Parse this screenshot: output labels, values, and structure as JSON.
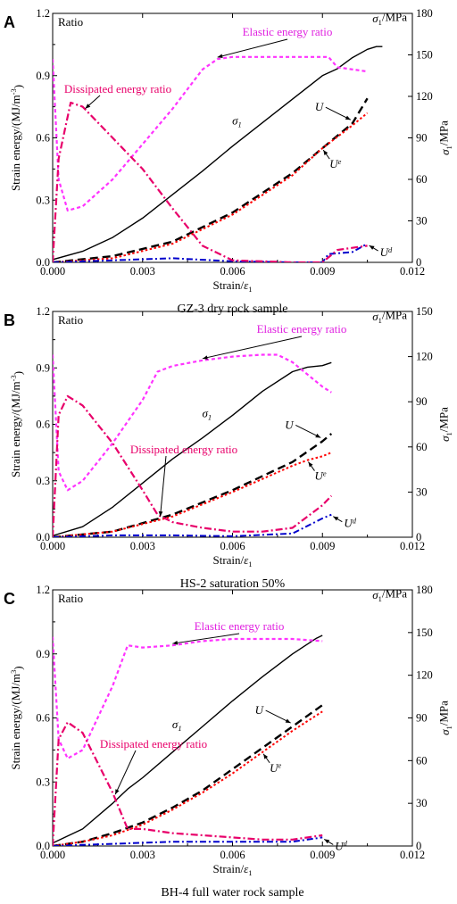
{
  "chart_data": [
    {
      "panel": "A",
      "type": "line",
      "caption": "GZ-3 dry rock sample",
      "xlabel": "Strain/ε1",
      "ylabel_left": "Strain energy/(MJ/m-3)",
      "ylabel_right": "σ1/MPa",
      "ratio_label": "Ratio",
      "xlim": [
        0,
        0.012
      ],
      "ylim_left": [
        0,
        1.2
      ],
      "ylim_right": [
        0,
        180
      ],
      "x_ticks": [
        "0.000",
        "0.003",
        "0.006",
        "0.009",
        "0.012"
      ],
      "y_left_ticks": [
        "0.0",
        "0.3",
        "0.6",
        "0.9",
        "1.2"
      ],
      "y_right_ticks": [
        "0",
        "30",
        "60",
        "90",
        "120",
        "150",
        "180"
      ],
      "annotations": {
        "elastic": "Elastic energy ratio",
        "dissipated": "Dissipated energy ratio",
        "sigma": "σ1",
        "U": "U",
        "Ue": "Ue",
        "Ud": "Ud"
      },
      "series": [
        {
          "key": "sigma",
          "axis": "right",
          "color": "#000000",
          "x": [
            0,
            0.001,
            0.002,
            0.003,
            0.004,
            0.005,
            0.006,
            0.007,
            0.008,
            0.009,
            0.0095,
            0.01,
            0.0105,
            0.0108,
            0.011
          ],
          "y": [
            2,
            8,
            18,
            32,
            49,
            66,
            84,
            101,
            118,
            135,
            140,
            148,
            154,
            156,
            156
          ]
        },
        {
          "key": "U",
          "axis": "left",
          "color": "#000000",
          "x": [
            0,
            0.002,
            0.004,
            0.006,
            0.008,
            0.009,
            0.01,
            0.0105
          ],
          "y": [
            0,
            0.03,
            0.1,
            0.24,
            0.43,
            0.55,
            0.67,
            0.79
          ]
        },
        {
          "key": "Ue",
          "axis": "left",
          "color": "#ff0000",
          "x": [
            0,
            0.002,
            0.004,
            0.006,
            0.008,
            0.009,
            0.01,
            0.0105
          ],
          "y": [
            0,
            0.02,
            0.09,
            0.23,
            0.42,
            0.55,
            0.66,
            0.72
          ]
        },
        {
          "key": "Ud",
          "axis": "left",
          "color": "#0000cc",
          "x": [
            0,
            0.002,
            0.004,
            0.006,
            0.008,
            0.009,
            0.0092,
            0.01,
            0.0105
          ],
          "y": [
            0,
            0.01,
            0.02,
            0.005,
            0.0,
            0.0,
            0.04,
            0.05,
            0.09
          ]
        },
        {
          "key": "elastic",
          "axis": "left",
          "color": "#ff33ff",
          "x": [
            0,
            0.0002,
            0.0005,
            0.001,
            0.002,
            0.003,
            0.004,
            0.005,
            0.0055,
            0.006,
            0.007,
            0.008,
            0.0092,
            0.0095,
            0.0105
          ],
          "y": [
            0.98,
            0.4,
            0.25,
            0.27,
            0.4,
            0.57,
            0.74,
            0.93,
            0.98,
            0.99,
            0.99,
            0.99,
            0.99,
            0.94,
            0.92
          ]
        },
        {
          "key": "dissipated",
          "axis": "left",
          "color": "#e8006a",
          "x": [
            0,
            0.0002,
            0.0006,
            0.001,
            0.002,
            0.003,
            0.004,
            0.005,
            0.006,
            0.008,
            0.009,
            0.0095,
            0.01,
            0.0105
          ],
          "y": [
            0.0,
            0.5,
            0.77,
            0.75,
            0.6,
            0.45,
            0.26,
            0.08,
            0.01,
            0.0,
            0.0,
            0.06,
            0.07,
            0.08
          ]
        }
      ]
    },
    {
      "panel": "B",
      "type": "line",
      "caption": "HS-2 saturation 50%",
      "xlabel": "Strain/ε1",
      "ylabel_left": "Strain energy/(MJ/m-3)",
      "ylabel_right": "σ1/MPa",
      "ratio_label": "Ratio",
      "xlim": [
        0,
        0.012
      ],
      "ylim_left": [
        0,
        1.2
      ],
      "ylim_right": [
        0,
        150
      ],
      "x_ticks": [
        "0.000",
        "0.003",
        "0.006",
        "0.009",
        "0.012"
      ],
      "y_left_ticks": [
        "0.0",
        "0.3",
        "0.6",
        "0.9",
        "1.2"
      ],
      "y_right_ticks": [
        "0",
        "30",
        "60",
        "90",
        "120",
        "150"
      ],
      "annotations": {
        "elastic": "Elastic energy ratio",
        "dissipated": "Dissipated energy ratio",
        "sigma": "σ1",
        "U": "U",
        "Ue": "Ue",
        "Ud": "Ud"
      },
      "series": [
        {
          "key": "sigma",
          "axis": "right",
          "color": "#000000",
          "x": [
            0,
            0.001,
            0.002,
            0.003,
            0.004,
            0.005,
            0.006,
            0.007,
            0.008,
            0.0085,
            0.009,
            0.0093
          ],
          "y": [
            1,
            7,
            20,
            36,
            52,
            66,
            81,
            97,
            110,
            113,
            114,
            116
          ]
        },
        {
          "key": "U",
          "axis": "left",
          "color": "#000000",
          "x": [
            0,
            0.002,
            0.004,
            0.006,
            0.008,
            0.009,
            0.0093
          ],
          "y": [
            0,
            0.03,
            0.12,
            0.25,
            0.4,
            0.51,
            0.55
          ]
        },
        {
          "key": "Ue",
          "axis": "left",
          "color": "#ff0000",
          "x": [
            0,
            0.002,
            0.004,
            0.006,
            0.008,
            0.0085,
            0.009,
            0.0093
          ],
          "y": [
            0,
            0.03,
            0.11,
            0.24,
            0.38,
            0.41,
            0.43,
            0.45
          ]
        },
        {
          "key": "Ud",
          "axis": "left",
          "color": "#0000cc",
          "x": [
            0,
            0.002,
            0.004,
            0.006,
            0.008,
            0.009,
            0.0093
          ],
          "y": [
            0,
            0.01,
            0.01,
            0.005,
            0.02,
            0.1,
            0.12
          ]
        },
        {
          "key": "elastic",
          "axis": "left",
          "color": "#ff33ff",
          "x": [
            0,
            0.0002,
            0.0005,
            0.001,
            0.002,
            0.003,
            0.0035,
            0.004,
            0.005,
            0.006,
            0.007,
            0.0075,
            0.008,
            0.009,
            0.0093
          ],
          "y": [
            0.97,
            0.35,
            0.25,
            0.3,
            0.5,
            0.73,
            0.88,
            0.91,
            0.94,
            0.96,
            0.97,
            0.97,
            0.93,
            0.8,
            0.77
          ]
        },
        {
          "key": "dissipated",
          "axis": "left",
          "color": "#e8006a",
          "x": [
            0,
            0.0002,
            0.0005,
            0.001,
            0.002,
            0.003,
            0.0035,
            0.004,
            0.005,
            0.006,
            0.007,
            0.008,
            0.009,
            0.0093
          ],
          "y": [
            0.0,
            0.65,
            0.75,
            0.7,
            0.5,
            0.25,
            0.12,
            0.08,
            0.05,
            0.03,
            0.03,
            0.05,
            0.17,
            0.22
          ]
        }
      ]
    },
    {
      "panel": "C",
      "type": "line",
      "caption": "BH-4 full water rock sample",
      "xlabel": "Strain/ε1",
      "ylabel_left": "Strain energy/(MJ/m3)",
      "ylabel_right": "σ1/MPa",
      "ratio_label": "Ratio",
      "xlim": [
        0,
        0.012
      ],
      "ylim_left": [
        0,
        1.2
      ],
      "ylim_right": [
        0,
        180
      ],
      "x_ticks": [
        "0.000",
        "0.003",
        "0.006",
        "0.009",
        "0.012"
      ],
      "y_left_ticks": [
        "0.0",
        "0.3",
        "0.6",
        "0.9",
        "1.2"
      ],
      "y_right_ticks": [
        "0",
        "30",
        "60",
        "90",
        "120",
        "150",
        "180"
      ],
      "annotations": {
        "elastic": "Elastic energy ratio",
        "dissipated": "Dissipated energy ratio",
        "sigma": "σ1",
        "U": "U",
        "Ue": "Ue",
        "Ud": "Ud"
      },
      "series": [
        {
          "key": "sigma",
          "axis": "right",
          "color": "#000000",
          "x": [
            0,
            0.001,
            0.002,
            0.0025,
            0.003,
            0.004,
            0.005,
            0.006,
            0.007,
            0.008,
            0.0088,
            0.009
          ],
          "y": [
            2,
            12,
            30,
            40,
            48,
            66,
            84,
            102,
            119,
            135,
            146,
            148
          ]
        },
        {
          "key": "U",
          "axis": "left",
          "color": "#000000",
          "x": [
            0,
            0.001,
            0.002,
            0.003,
            0.004,
            0.005,
            0.006,
            0.007,
            0.008,
            0.009
          ],
          "y": [
            0,
            0.02,
            0.06,
            0.11,
            0.18,
            0.26,
            0.36,
            0.46,
            0.56,
            0.66
          ]
        },
        {
          "key": "Ue",
          "axis": "left",
          "color": "#ff0000",
          "x": [
            0,
            0.001,
            0.002,
            0.003,
            0.004,
            0.005,
            0.006,
            0.007,
            0.008,
            0.009
          ],
          "y": [
            0,
            0.02,
            0.05,
            0.1,
            0.17,
            0.25,
            0.34,
            0.44,
            0.54,
            0.63
          ]
        },
        {
          "key": "Ud",
          "axis": "left",
          "color": "#0000cc",
          "x": [
            0,
            0.002,
            0.004,
            0.006,
            0.008,
            0.009
          ],
          "y": [
            0,
            0.01,
            0.02,
            0.02,
            0.02,
            0.04
          ]
        },
        {
          "key": "elastic",
          "axis": "left",
          "color": "#ff33ff",
          "x": [
            0,
            0.0002,
            0.0005,
            0.001,
            0.002,
            0.0025,
            0.003,
            0.004,
            0.005,
            0.006,
            0.007,
            0.008,
            0.009
          ],
          "y": [
            0.98,
            0.5,
            0.41,
            0.45,
            0.75,
            0.94,
            0.93,
            0.94,
            0.96,
            0.97,
            0.97,
            0.97,
            0.96
          ]
        },
        {
          "key": "dissipated",
          "axis": "left",
          "color": "#e8006a",
          "x": [
            0,
            0.0002,
            0.0005,
            0.001,
            0.002,
            0.0025,
            0.003,
            0.004,
            0.005,
            0.006,
            0.007,
            0.008,
            0.009
          ],
          "y": [
            0.0,
            0.5,
            0.58,
            0.53,
            0.25,
            0.08,
            0.08,
            0.06,
            0.05,
            0.04,
            0.03,
            0.03,
            0.05
          ]
        }
      ]
    }
  ]
}
